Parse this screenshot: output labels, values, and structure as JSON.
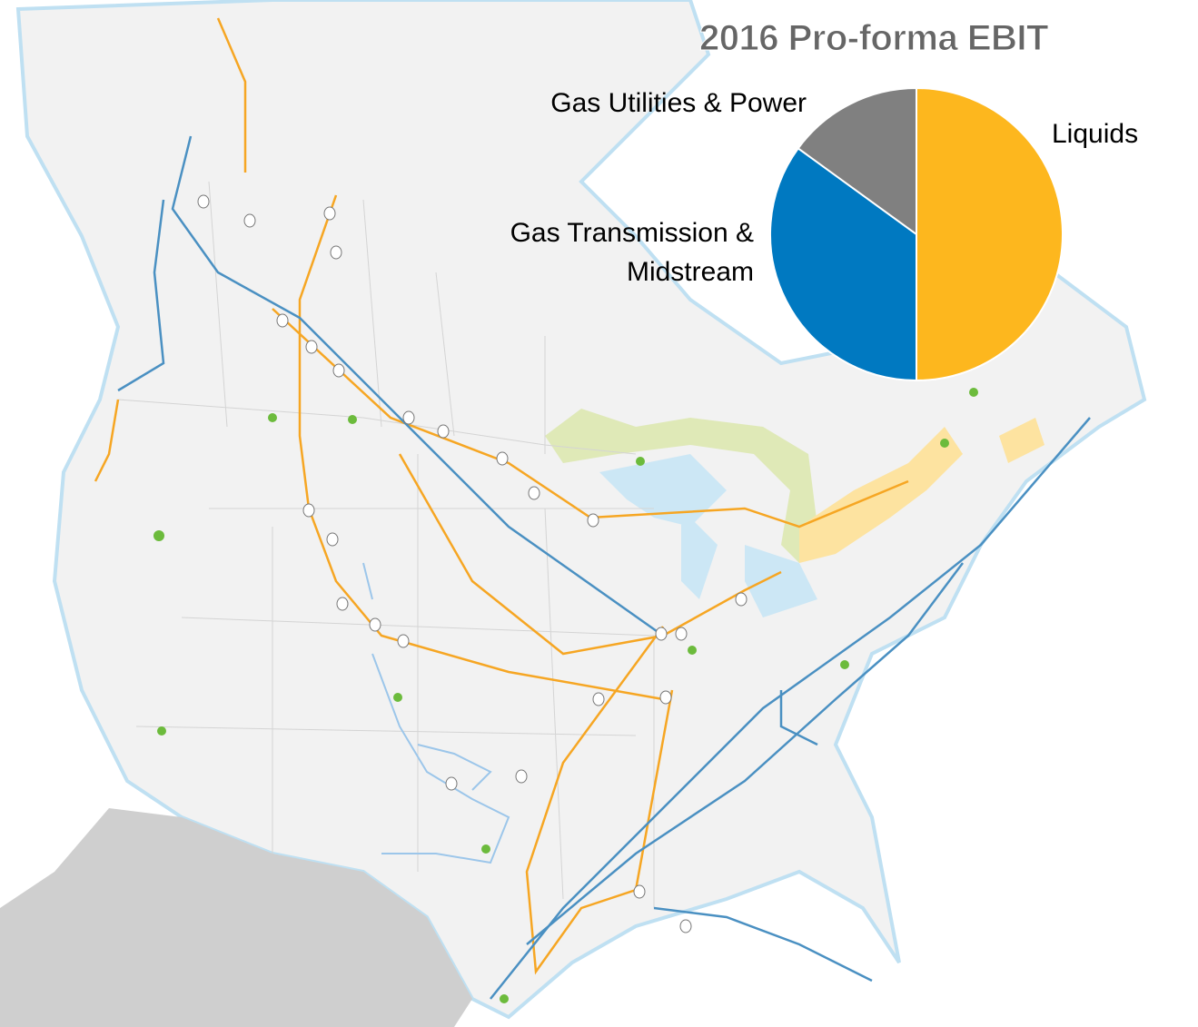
{
  "chart_data": {
    "type": "pie",
    "title": "2016 Pro-forma EBIT",
    "categories": [
      "Liquids",
      "Gas Transmission & Midstream",
      "Gas Utilities & Power"
    ],
    "values": [
      50,
      35,
      15
    ],
    "colors": [
      "#fdb71e",
      "#0079c1",
      "#808080"
    ]
  }
}
